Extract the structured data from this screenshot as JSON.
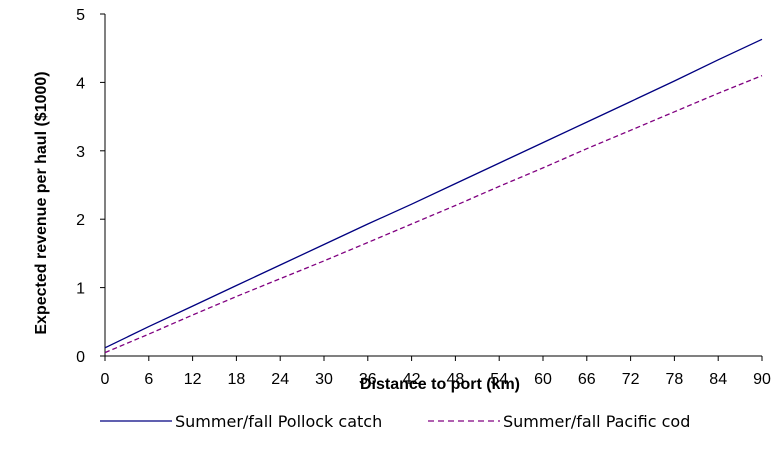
{
  "chart_data": {
    "type": "line",
    "title": "",
    "xlabel": "Distance to port (km)",
    "ylabel": "Expected revenue per haul ($1000)",
    "xlim": [
      0,
      90
    ],
    "ylim": [
      0,
      5
    ],
    "x_ticks": [
      "0",
      "6",
      "12",
      "18",
      "24",
      "30",
      "36",
      "42",
      "48",
      "54",
      "60",
      "66",
      "72",
      "78",
      "84",
      "90"
    ],
    "y_ticks": [
      "0",
      "1",
      "2",
      "3",
      "4",
      "5"
    ],
    "grid": false,
    "legend_position": "bottom",
    "x": [
      0,
      6,
      12,
      18,
      24,
      30,
      36,
      42,
      48,
      54,
      60,
      66,
      72,
      78,
      84,
      90
    ],
    "series": [
      {
        "name": "Summer/fall Pollock catch",
        "color": "#000080",
        "style": "solid",
        "values": [
          0.12,
          0.43,
          0.73,
          1.03,
          1.33,
          1.63,
          1.93,
          2.22,
          2.52,
          2.82,
          3.12,
          3.42,
          3.72,
          4.02,
          4.33,
          4.63
        ]
      },
      {
        "name": "Summer/fall Pacific cod",
        "color": "#800080",
        "style": "dashed",
        "values": [
          0.05,
          0.32,
          0.6,
          0.87,
          1.13,
          1.39,
          1.66,
          1.93,
          2.2,
          2.48,
          2.75,
          3.03,
          3.3,
          3.57,
          3.84,
          4.1
        ]
      }
    ]
  }
}
